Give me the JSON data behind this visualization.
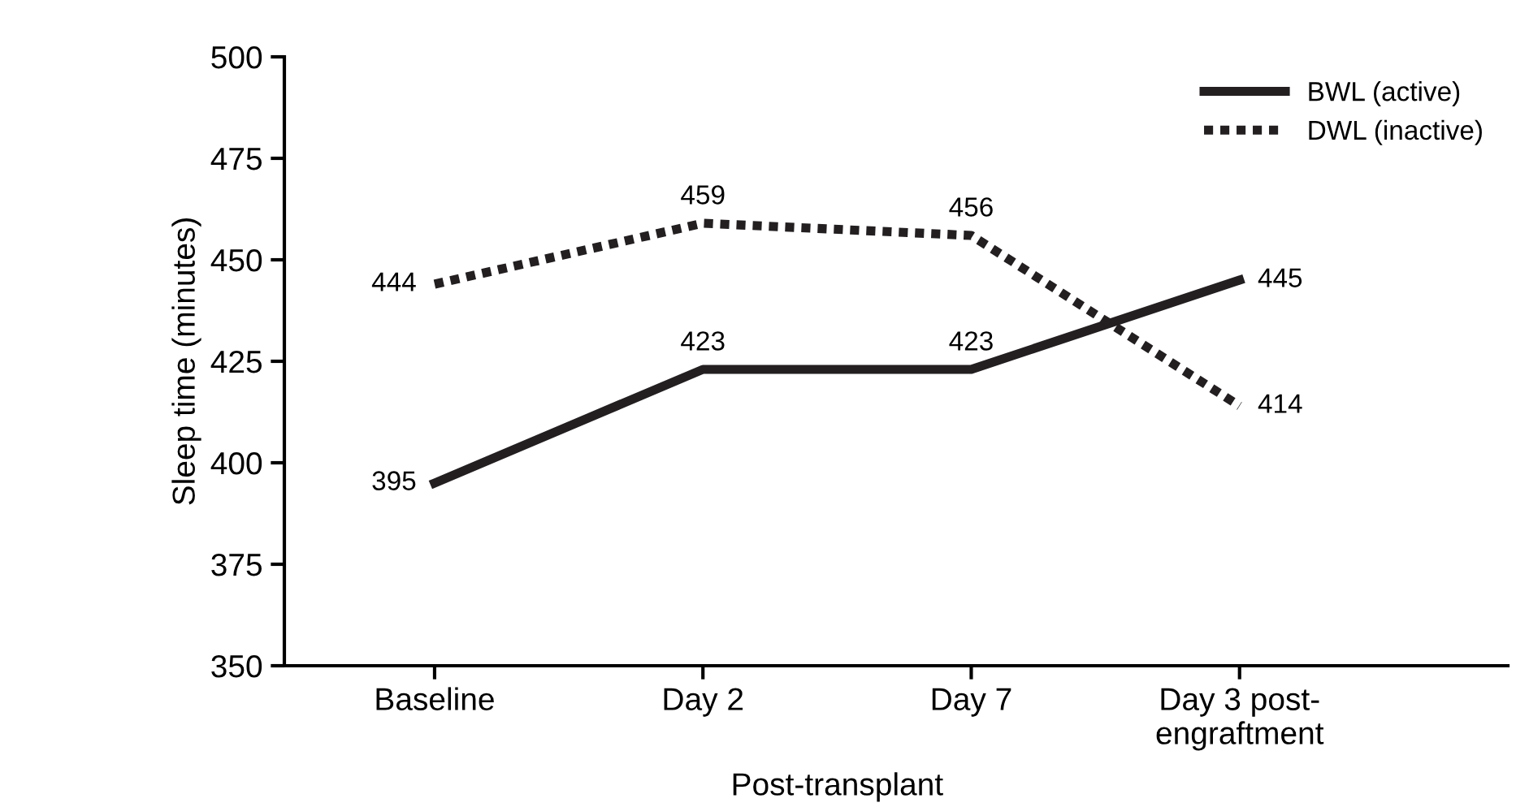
{
  "chart_data": {
    "type": "line",
    "ylabel": "Sleep time (minutes)",
    "categories": [
      "Baseline",
      "Day 2",
      "Day 7",
      "Day 3 post-\nengraftment"
    ],
    "series": [
      {
        "name": "BWL (active)",
        "color": "#231f20",
        "values": [
          395,
          423,
          423,
          445
        ],
        "line_style": "solid"
      },
      {
        "name": "DWL (inactive)",
        "color": "#231f20",
        "values": [
          444,
          459,
          456,
          414
        ],
        "line_style": "dotted"
      }
    ],
    "ylim": [
      350,
      500
    ],
    "yticks": [
      350,
      375,
      400,
      425,
      450,
      475,
      500
    ],
    "annotations": [
      "Post-transplant"
    ],
    "data_labels": true,
    "legend": "top right",
    "grid": false,
    "marker": "none"
  }
}
